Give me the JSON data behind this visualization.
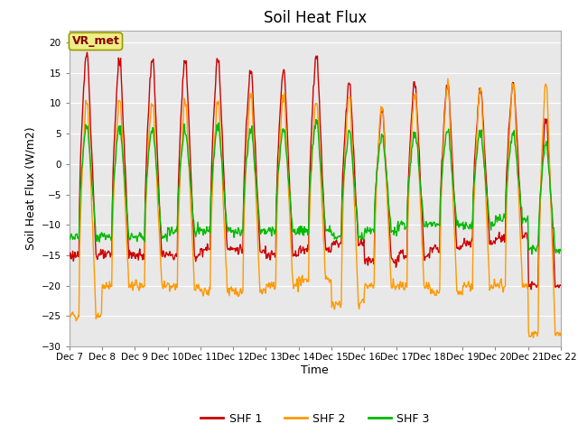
{
  "title": "Soil Heat Flux",
  "xlabel": "Time",
  "ylabel": "Soil Heat Flux (W/m2)",
  "ylim": [
    -30,
    22
  ],
  "yticks": [
    -30,
    -25,
    -20,
    -15,
    -10,
    -5,
    0,
    5,
    10,
    15,
    20
  ],
  "colors": {
    "SHF 1": "#cc0000",
    "SHF 2": "#ff9900",
    "SHF 3": "#00bb00"
  },
  "fig_bg": "#ffffff",
  "plot_bg": "#e8e8e8",
  "legend_label": "VR_met",
  "n_days": 15,
  "start_day": 7,
  "points_per_day": 48,
  "shf1_peaks": [
    18,
    17,
    17,
    17,
    17,
    15,
    15,
    17.5,
    13,
    8.5,
    13,
    13,
    12,
    13,
    7
  ],
  "shf1_nights": [
    -15,
    -15,
    -15,
    -15,
    -14,
    -14,
    -15,
    -14,
    -13,
    -16,
    -15,
    -14,
    -13,
    -12,
    -20
  ],
  "shf2_peaks": [
    10,
    10,
    10,
    10,
    10,
    11,
    11,
    10,
    11,
    9,
    11,
    13,
    12,
    13,
    13
  ],
  "shf2_nights": [
    -25,
    -20,
    -20,
    -20,
    -21,
    -21,
    -20,
    -19,
    -23,
    -20,
    -20,
    -21,
    -20,
    -20,
    -28
  ],
  "shf3_peaks": [
    6,
    6,
    6,
    5.5,
    6,
    5.5,
    5.5,
    7,
    5,
    4.5,
    5,
    5,
    5,
    5,
    3
  ],
  "shf3_nights": [
    -12,
    -12,
    -12,
    -11,
    -11,
    -11,
    -11,
    -11,
    -12,
    -11,
    -10,
    -10,
    -10,
    -9,
    -14
  ]
}
